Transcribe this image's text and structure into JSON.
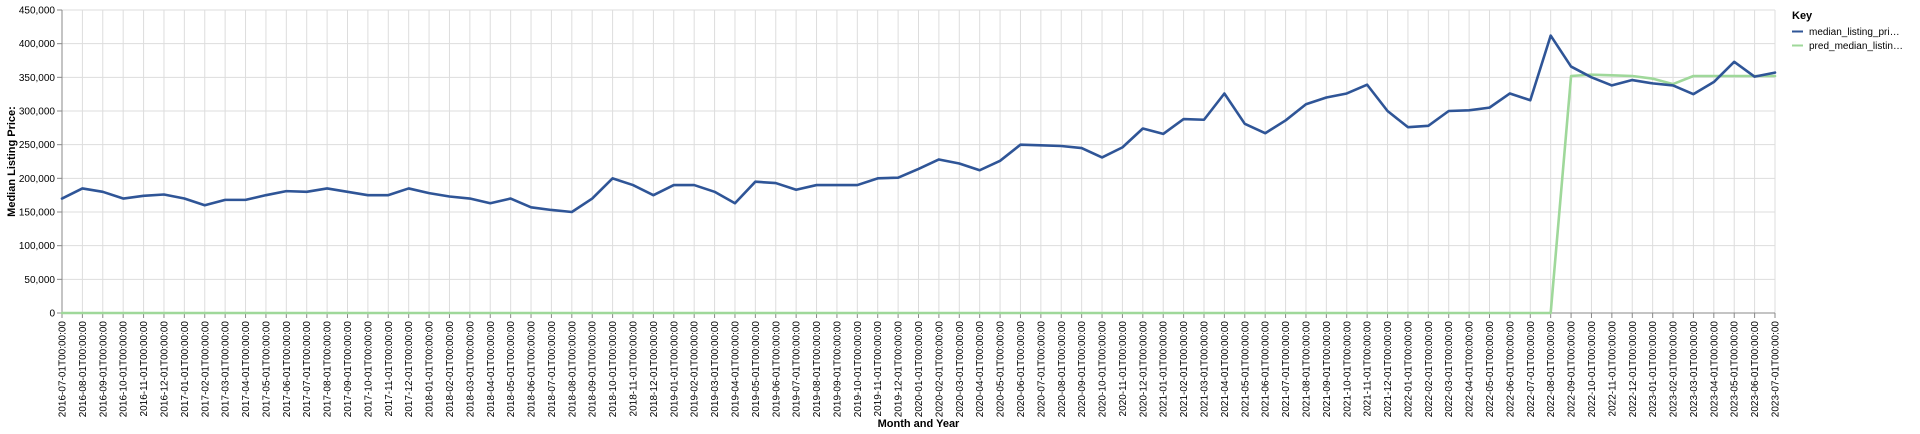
{
  "chart_data": {
    "type": "line",
    "xlabel": "Month and Year",
    "ylabel": "Median Listing Price:",
    "ylim": [
      0,
      450000
    ],
    "yticks": [
      "0",
      "50,000",
      "100,000",
      "150,000",
      "200,000",
      "250,000",
      "300,000",
      "350,000",
      "400,000",
      "450,000"
    ],
    "ytick_values": [
      0,
      50000,
      100000,
      150000,
      200000,
      250000,
      300000,
      350000,
      400000,
      450000
    ],
    "grid": true,
    "legend": {
      "title": "Key",
      "placement": "top-right",
      "entries": [
        "median_listing_pri…",
        "pred_median_listin…"
      ]
    },
    "x": [
      "2016-07-01T00:00:00",
      "2016-08-01T00:00:00",
      "2016-09-01T00:00:00",
      "2016-10-01T00:00:00",
      "2016-11-01T00:00:00",
      "2016-12-01T00:00:00",
      "2017-01-01T00:00:00",
      "2017-02-01T00:00:00",
      "2017-03-01T00:00:00",
      "2017-04-01T00:00:00",
      "2017-05-01T00:00:00",
      "2017-06-01T00:00:00",
      "2017-07-01T00:00:00",
      "2017-08-01T00:00:00",
      "2017-09-01T00:00:00",
      "2017-10-01T00:00:00",
      "2017-11-01T00:00:00",
      "2017-12-01T00:00:00",
      "2018-01-01T00:00:00",
      "2018-02-01T00:00:00",
      "2018-03-01T00:00:00",
      "2018-04-01T00:00:00",
      "2018-05-01T00:00:00",
      "2018-06-01T00:00:00",
      "2018-07-01T00:00:00",
      "2018-08-01T00:00:00",
      "2018-09-01T00:00:00",
      "2018-10-01T00:00:00",
      "2018-11-01T00:00:00",
      "2018-12-01T00:00:00",
      "2019-01-01T00:00:00",
      "2019-02-01T00:00:00",
      "2019-03-01T00:00:00",
      "2019-04-01T00:00:00",
      "2019-05-01T00:00:00",
      "2019-06-01T00:00:00",
      "2019-07-01T00:00:00",
      "2019-08-01T00:00:00",
      "2019-09-01T00:00:00",
      "2019-10-01T00:00:00",
      "2019-11-01T00:00:00",
      "2019-12-01T00:00:00",
      "2020-01-01T00:00:00",
      "2020-02-01T00:00:00",
      "2020-03-01T00:00:00",
      "2020-04-01T00:00:00",
      "2020-05-01T00:00:00",
      "2020-06-01T00:00:00",
      "2020-07-01T00:00:00",
      "2020-08-01T00:00:00",
      "2020-09-01T00:00:00",
      "2020-10-01T00:00:00",
      "2020-11-01T00:00:00",
      "2020-12-01T00:00:00",
      "2021-01-01T00:00:00",
      "2021-02-01T00:00:00",
      "2021-03-01T00:00:00",
      "2021-04-01T00:00:00",
      "2021-05-01T00:00:00",
      "2021-06-01T00:00:00",
      "2021-07-01T00:00:00",
      "2021-08-01T00:00:00",
      "2021-09-01T00:00:00",
      "2021-10-01T00:00:00",
      "2021-11-01T00:00:00",
      "2021-12-01T00:00:00",
      "2022-01-01T00:00:00",
      "2022-02-01T00:00:00",
      "2022-03-01T00:00:00",
      "2022-04-01T00:00:00",
      "2022-05-01T00:00:00",
      "2022-06-01T00:00:00",
      "2022-07-01T00:00:00",
      "2022-08-01T00:00:00",
      "2022-09-01T00:00:00",
      "2022-10-01T00:00:00",
      "2022-11-01T00:00:00",
      "2022-12-01T00:00:00",
      "2023-01-01T00:00:00",
      "2023-02-01T00:00:00",
      "2023-03-01T00:00:00",
      "2023-04-01T00:00:00",
      "2023-05-01T00:00:00",
      "2023-06-01T00:00:00",
      "2023-07-01T00:00:00"
    ],
    "series": [
      {
        "name": "median_listing_pri…",
        "color": "#2f5597",
        "values": [
          170000,
          185000,
          180000,
          170000,
          174000,
          176000,
          170000,
          160000,
          168000,
          168000,
          175000,
          181000,
          180000,
          185000,
          180000,
          175000,
          175000,
          185000,
          178000,
          173000,
          170000,
          163000,
          170000,
          157000,
          153000,
          150000,
          170000,
          200000,
          190000,
          175000,
          190000,
          190000,
          180000,
          163000,
          195000,
          193000,
          183000,
          190000,
          190000,
          190000,
          200000,
          201000,
          214000,
          228000,
          222000,
          212000,
          226000,
          250000,
          249000,
          248000,
          245000,
          231000,
          246000,
          274000,
          266000,
          288000,
          287000,
          326000,
          281000,
          267000,
          286000,
          310000,
          320000,
          326000,
          339000,
          300000,
          276000,
          278000,
          300000,
          301000,
          305000,
          326000,
          316000,
          412000,
          366000,
          350000,
          338000,
          346000,
          341000,
          338000,
          325000,
          343000,
          373000,
          351000,
          357000
        ]
      },
      {
        "name": "pred_median_listin…",
        "color": "#9fd89a",
        "values": [
          0,
          0,
          0,
          0,
          0,
          0,
          0,
          0,
          0,
          0,
          0,
          0,
          0,
          0,
          0,
          0,
          0,
          0,
          0,
          0,
          0,
          0,
          0,
          0,
          0,
          0,
          0,
          0,
          0,
          0,
          0,
          0,
          0,
          0,
          0,
          0,
          0,
          0,
          0,
          0,
          0,
          0,
          0,
          0,
          0,
          0,
          0,
          0,
          0,
          0,
          0,
          0,
          0,
          0,
          0,
          0,
          0,
          0,
          0,
          0,
          0,
          0,
          0,
          0,
          0,
          0,
          0,
          0,
          0,
          0,
          0,
          0,
          0,
          0,
          352000,
          354000,
          353000,
          352000,
          348000,
          340000,
          352000,
          352000,
          352000,
          352000,
          352000
        ]
      }
    ]
  }
}
